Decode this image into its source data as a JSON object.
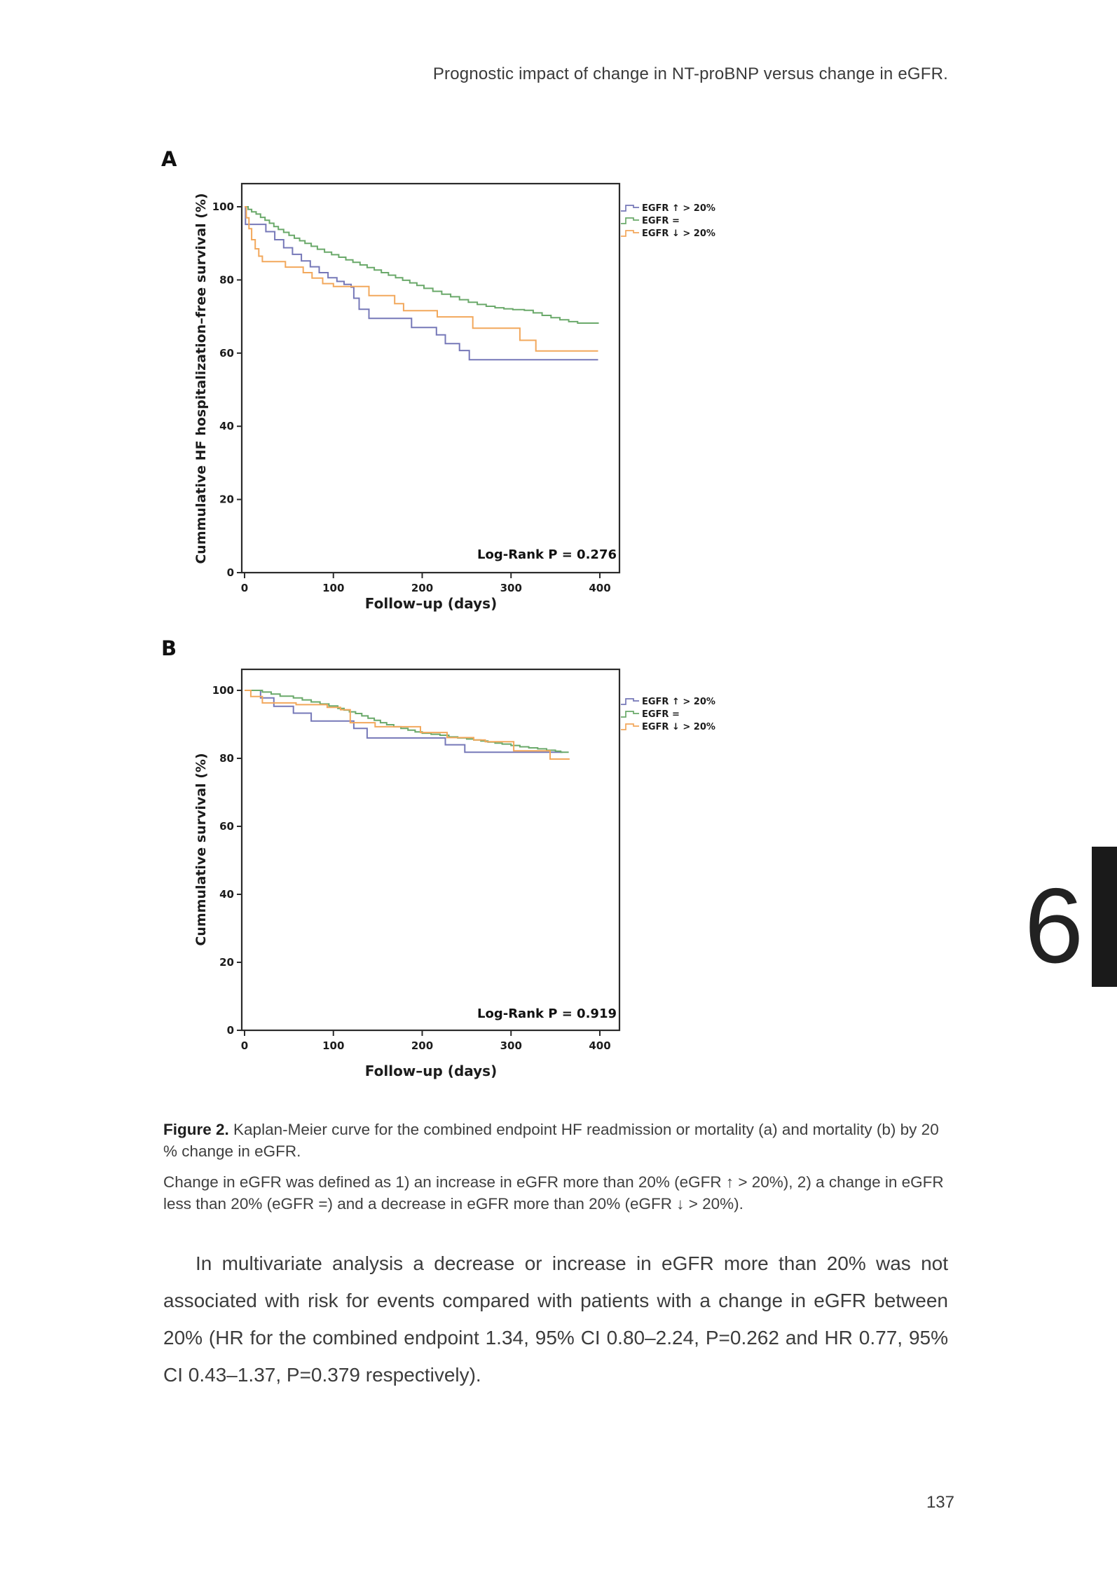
{
  "page": {
    "header_title": "Prognostic impact of change in NT-proBNP versus change in eGFR.",
    "chapter_number": "6",
    "page_number": "137"
  },
  "caption": {
    "figure_label": "Figure 2.",
    "text": " Kaplan-Meier curve for the combined endpoint HF readmission or mortality (a) and mortality (b) by 20 % change in eGFR.",
    "definition": "Change in eGFR was defined as 1) an increase in eGFR more than 20% (eGFR ↑ > 20%), 2) a change in eGFR less than 20% (eGFR =) and a decrease in eGFR more than 20% (eGFR ↓ > 20%)."
  },
  "body_paragraph": "In multivariate analysis a decrease or increase in eGFR more than 20% was not associated with risk for events compared with patients with a change in eGFR between 20% (HR for the combined endpoint 1.34, 95% CI 0.80–2.24, P=0.262 and HR 0.77, 95% CI 0.43–1.37, P=0.379 respectively).",
  "chart_data": [
    {
      "panel_label": "A",
      "type": "line",
      "subtype": "kaplan-meier-step",
      "title": "",
      "xlabel": "Follow–up (days)",
      "ylabel": "Cummulative HF hospitalization–free survival (%)",
      "annotation": "Log-Rank P = 0.276",
      "xticks": [
        0,
        100,
        200,
        300,
        400
      ],
      "yticks": [
        0,
        20,
        40,
        60,
        80,
        100
      ],
      "xlim": [
        0,
        425
      ],
      "ylim": [
        0,
        105
      ],
      "grid": false,
      "legend_position": "right-top",
      "series": [
        {
          "name": "EGFR ↑ > 20%",
          "color": "#7678b8",
          "points": [
            [
              0,
              100
            ],
            [
              1,
              95.2
            ],
            [
              21,
              95.2
            ],
            [
              24,
              93.2
            ],
            [
              34,
              91
            ],
            [
              44,
              88.8
            ],
            [
              54,
              87
            ],
            [
              64,
              85.2
            ],
            [
              74,
              83.6
            ],
            [
              84,
              82
            ],
            [
              94,
              80.6
            ],
            [
              104,
              79.6
            ],
            [
              112,
              78.8
            ],
            [
              120,
              78
            ],
            [
              123,
              75
            ],
            [
              129,
              72
            ],
            [
              136,
              72
            ],
            [
              140,
              69.5
            ],
            [
              184,
              69.5
            ],
            [
              188,
              67
            ],
            [
              212,
              67
            ],
            [
              216,
              65
            ],
            [
              223,
              65
            ],
            [
              226,
              62.6
            ],
            [
              239,
              62.6
            ],
            [
              242,
              60.7
            ],
            [
              250,
              60.7
            ],
            [
              253,
              58.2
            ],
            [
              398,
              58.2
            ]
          ]
        },
        {
          "name": "EGFR =",
          "color": "#6aa96a",
          "points": [
            [
              0,
              100
            ],
            [
              4,
              99.3
            ],
            [
              8,
              98.6
            ],
            [
              13,
              98
            ],
            [
              18,
              97.1
            ],
            [
              23,
              96.3
            ],
            [
              28,
              95.5
            ],
            [
              33,
              94.6
            ],
            [
              38,
              93.8
            ],
            [
              44,
              93
            ],
            [
              50,
              92.2
            ],
            [
              56,
              91.4
            ],
            [
              62,
              90.7
            ],
            [
              68,
              90
            ],
            [
              75,
              89.2
            ],
            [
              82,
              88.4
            ],
            [
              90,
              87.6
            ],
            [
              98,
              86.9
            ],
            [
              106,
              86.2
            ],
            [
              114,
              85.5
            ],
            [
              122,
              84.8
            ],
            [
              130,
              84.1
            ],
            [
              138,
              83.4
            ],
            [
              146,
              82.7
            ],
            [
              154,
              82
            ],
            [
              162,
              81.3
            ],
            [
              170,
              80.6
            ],
            [
              178,
              79.9
            ],
            [
              186,
              79.2
            ],
            [
              194,
              78.5
            ],
            [
              202,
              77.7
            ],
            [
              212,
              76.9
            ],
            [
              222,
              76.1
            ],
            [
              232,
              75.4
            ],
            [
              242,
              74.6
            ],
            [
              252,
              73.9
            ],
            [
              262,
              73.3
            ],
            [
              272,
              72.8
            ],
            [
              282,
              72.4
            ],
            [
              292,
              72.1
            ],
            [
              302,
              71.9
            ],
            [
              315,
              71.7
            ],
            [
              325,
              71
            ],
            [
              335,
              70.3
            ],
            [
              345,
              69.7
            ],
            [
              355,
              69.1
            ],
            [
              365,
              68.6
            ],
            [
              375,
              68.2
            ],
            [
              398,
              68
            ]
          ]
        },
        {
          "name": "EGFR ↓ > 20%",
          "color": "#f2a85c",
          "points": [
            [
              0,
              100
            ],
            [
              2,
              97
            ],
            [
              5,
              94
            ],
            [
              8,
              91
            ],
            [
              12,
              88.5
            ],
            [
              16,
              86.5
            ],
            [
              20,
              85
            ],
            [
              43,
              85
            ],
            [
              46,
              83.5
            ],
            [
              63,
              83.5
            ],
            [
              66,
              82
            ],
            [
              76,
              80.5
            ],
            [
              88,
              79
            ],
            [
              100,
              78.2
            ],
            [
              136,
              78.2
            ],
            [
              140,
              75.7
            ],
            [
              166,
              75.7
            ],
            [
              169,
              73.5
            ],
            [
              176,
              73.5
            ],
            [
              179,
              71.6
            ],
            [
              214,
              71.6
            ],
            [
              217,
              69.9
            ],
            [
              254,
              69.9
            ],
            [
              257,
              66.8
            ],
            [
              306,
              66.8
            ],
            [
              310,
              63.5
            ],
            [
              324,
              63.5
            ],
            [
              328,
              60.6
            ],
            [
              398,
              60.6
            ]
          ]
        }
      ]
    },
    {
      "panel_label": "B",
      "type": "line",
      "subtype": "kaplan-meier-step",
      "title": "",
      "xlabel": "Follow–up (days)",
      "ylabel": "Cummulative survival (%)",
      "annotation": "Log-Rank P = 0.919",
      "xticks": [
        0,
        100,
        200,
        300,
        400
      ],
      "yticks": [
        0,
        20,
        40,
        60,
        80,
        100
      ],
      "xlim": [
        0,
        425
      ],
      "ylim": [
        0,
        105
      ],
      "grid": false,
      "legend_position": "right-top",
      "series": [
        {
          "name": "EGFR ↑ > 20%",
          "color": "#7678b8",
          "points": [
            [
              0,
              100
            ],
            [
              16,
              100
            ],
            [
              18,
              97.8
            ],
            [
              30,
              97.8
            ],
            [
              33,
              95.3
            ],
            [
              52,
              95.3
            ],
            [
              55,
              93.3
            ],
            [
              72,
              93.3
            ],
            [
              75,
              91
            ],
            [
              120,
              91
            ],
            [
              123,
              88.8
            ],
            [
              135,
              88.8
            ],
            [
              138,
              86
            ],
            [
              222,
              86
            ],
            [
              226,
              84
            ],
            [
              245,
              84
            ],
            [
              248,
              81.8
            ],
            [
              358,
              81.8
            ]
          ]
        },
        {
          "name": "EGFR =",
          "color": "#6aa96a",
          "points": [
            [
              0,
              100
            ],
            [
              20,
              99.5
            ],
            [
              30,
              98.9
            ],
            [
              40,
              98.3
            ],
            [
              55,
              97.8
            ],
            [
              65,
              97.2
            ],
            [
              75,
              96.6
            ],
            [
              85,
              96
            ],
            [
              95,
              95.4
            ],
            [
              105,
              94.7
            ],
            [
              112,
              94.2
            ],
            [
              118,
              93.7
            ],
            [
              125,
              93.2
            ],
            [
              132,
              92.5
            ],
            [
              139,
              91.8
            ],
            [
              146,
              91.2
            ],
            [
              153,
              90.5
            ],
            [
              160,
              89.9
            ],
            [
              168,
              89.3
            ],
            [
              176,
              88.8
            ],
            [
              184,
              88.3
            ],
            [
              192,
              87.8
            ],
            [
              200,
              87.4
            ],
            [
              210,
              87.1
            ],
            [
              220,
              86.8
            ],
            [
              230,
              86.3
            ],
            [
              240,
              86
            ],
            [
              250,
              85.7
            ],
            [
              258,
              85.4
            ],
            [
              266,
              85.1
            ],
            [
              274,
              84.8
            ],
            [
              282,
              84.5
            ],
            [
              290,
              84.2
            ],
            [
              300,
              83.8
            ],
            [
              310,
              83.4
            ],
            [
              320,
              83.1
            ],
            [
              330,
              82.8
            ],
            [
              340,
              82.4
            ],
            [
              350,
              82.1
            ],
            [
              356,
              81.8
            ],
            [
              365,
              81.8
            ]
          ]
        },
        {
          "name": "EGFR ↓ > 20%",
          "color": "#f2a85c",
          "points": [
            [
              0,
              100
            ],
            [
              7,
              98.2
            ],
            [
              18,
              98.2
            ],
            [
              20,
              96.3
            ],
            [
              55,
              96.3
            ],
            [
              58,
              95.8
            ],
            [
              90,
              95.8
            ],
            [
              93,
              95
            ],
            [
              105,
              95
            ],
            [
              108,
              94.3
            ],
            [
              116,
              94.3
            ],
            [
              119,
              90.5
            ],
            [
              144,
              90.5
            ],
            [
              147,
              89.3
            ],
            [
              195,
              89.3
            ],
            [
              198,
              87.6
            ],
            [
              225,
              87.6
            ],
            [
              228,
              86.1
            ],
            [
              255,
              86.1
            ],
            [
              258,
              85.4
            ],
            [
              268,
              85.4
            ],
            [
              271,
              84.9
            ],
            [
              300,
              84.9
            ],
            [
              303,
              82.2
            ],
            [
              341,
              82.2
            ],
            [
              344,
              79.8
            ],
            [
              366,
              79.8
            ]
          ]
        }
      ]
    }
  ]
}
